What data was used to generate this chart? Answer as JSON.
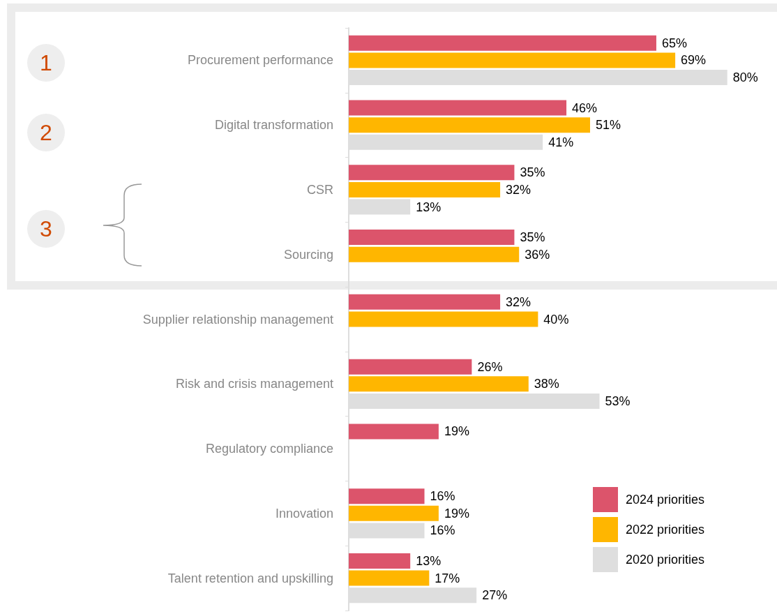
{
  "chart_data": {
    "type": "bar",
    "orientation": "horizontal",
    "legend": "bottom right",
    "categories": [
      "Procurement performance",
      "Digital transformation",
      "CSR",
      "Sourcing",
      "Supplier relationship management",
      "Risk and crisis management",
      "Regulatory compliance",
      "Innovation",
      "Talent retention and upskilling"
    ],
    "series": [
      {
        "name": "2024 priorities",
        "color": "#dc546b",
        "values": [
          65,
          46,
          35,
          35,
          32,
          26,
          19,
          16,
          13
        ],
        "value_labels": [
          "65%",
          "46%",
          "35%",
          "35%",
          "32%",
          "26%",
          "19%",
          "16%",
          "13%"
        ]
      },
      {
        "name": "2022 priorities",
        "color": "#ffb600",
        "values": [
          69,
          51,
          32,
          36,
          40,
          38,
          null,
          19,
          17
        ],
        "value_labels": [
          "69%",
          "51%",
          "32%",
          "36%",
          "40%",
          "38%",
          null,
          "19%",
          "17%"
        ]
      },
      {
        "name": "2020 priorities",
        "color": "#dedede",
        "values": [
          80,
          41,
          13,
          null,
          null,
          53,
          null,
          16,
          27
        ],
        "value_labels": [
          "80%",
          "41%",
          "13%",
          null,
          null,
          "53%",
          null,
          "16%",
          "27%"
        ]
      }
    ],
    "annotations": [
      "1",
      "2",
      "3"
    ]
  }
}
